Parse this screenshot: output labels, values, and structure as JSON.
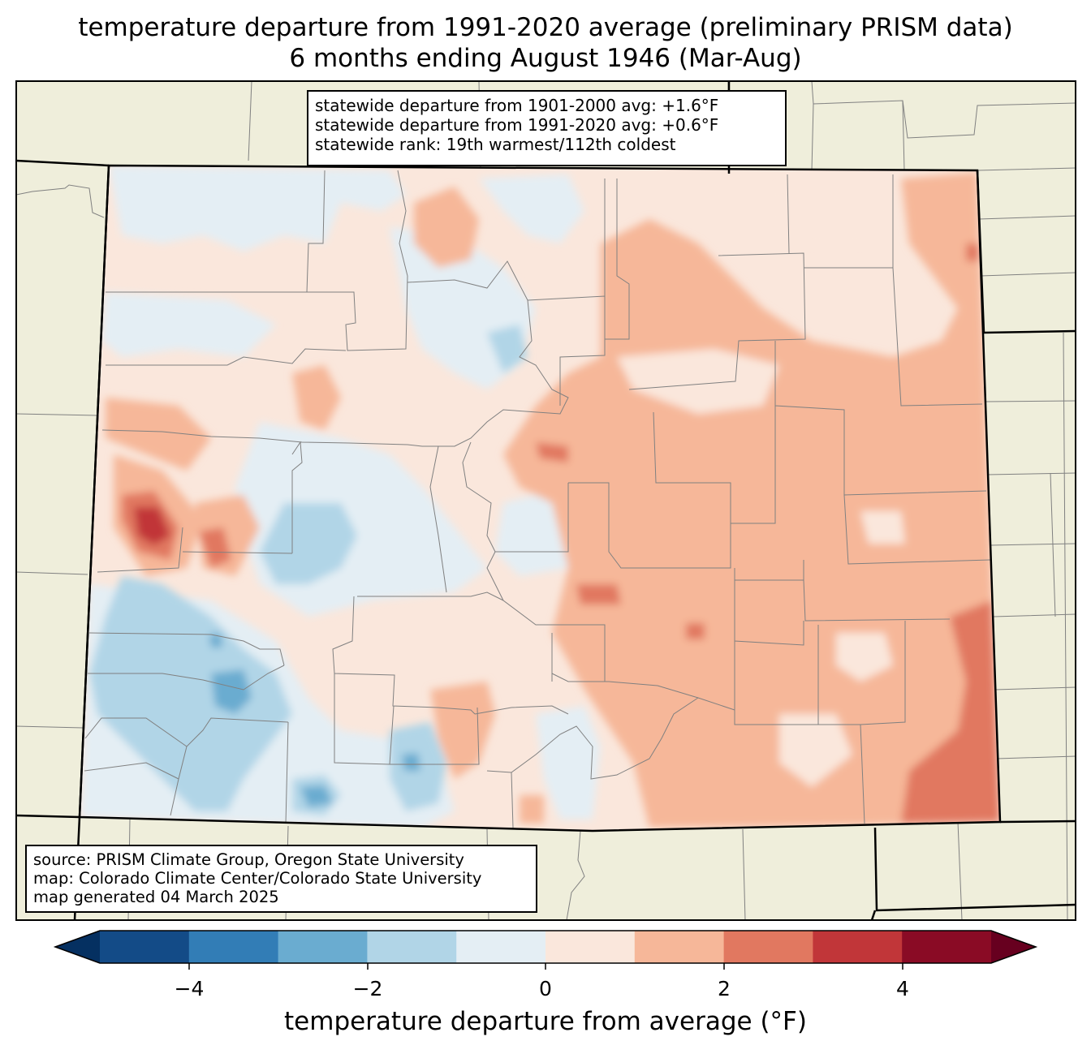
{
  "title": {
    "line1": "temperature departure from 1991-2020 average (preliminary PRISM data)",
    "line2": "6 months ending August 1946 (Mar-Aug)"
  },
  "stats": {
    "line1": "statewide departure from 1901-2000 avg: +1.6°F",
    "line2": "statewide departure from 1991-2020 avg: +0.6°F",
    "line3": "statewide rank: 19th warmest/112th coldest"
  },
  "source": {
    "line1": "source: PRISM Climate Group, Oregon State University",
    "line2": "map: Colorado Climate Center/Colorado State University",
    "line3": "map generated 04 March 2025"
  },
  "colorbar": {
    "label": "temperature departure from average (°F)",
    "ticks": [
      "−4",
      "−2",
      "0",
      "2",
      "4"
    ],
    "colors": [
      "#053061",
      "#134b87",
      "#327db6",
      "#6aacd0",
      "#b1d5e7",
      "#e4eef4",
      "#fae7dc",
      "#f6b799",
      "#e17860",
      "#c13639",
      "#8a0b25",
      "#67001f"
    ]
  },
  "colors": {
    "land": "#efeedb",
    "state_border": "#000000",
    "county_border": "#808080"
  }
}
